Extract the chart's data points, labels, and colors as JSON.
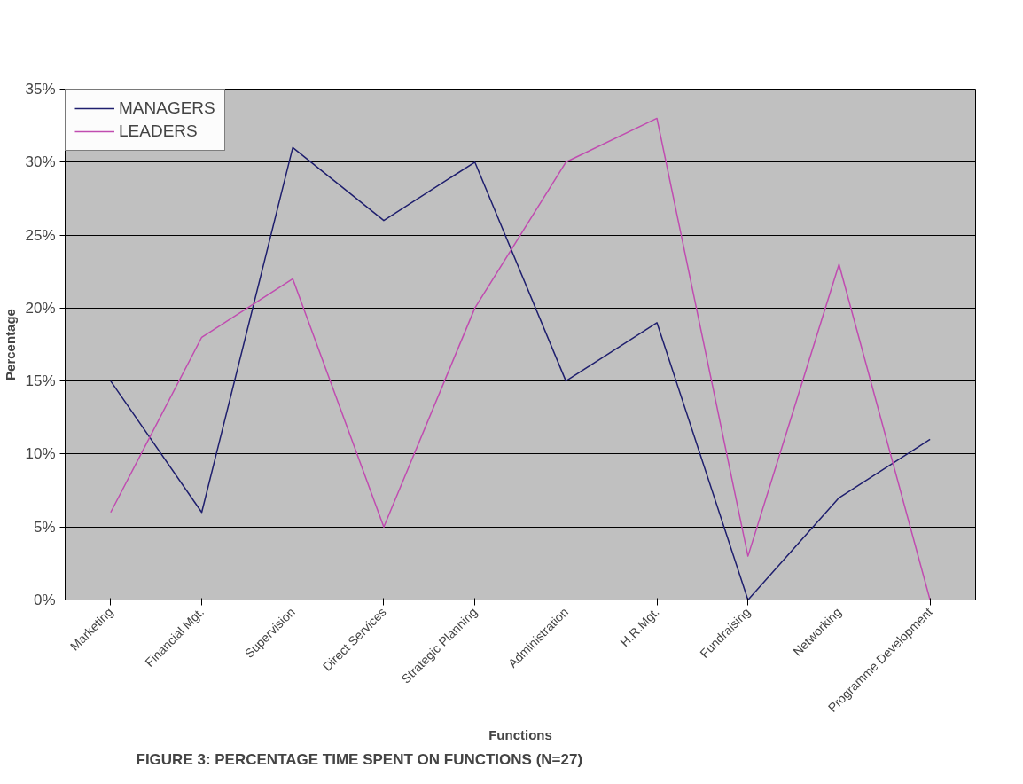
{
  "chart_data": {
    "type": "line",
    "title": "FIGURE 3: PERCENTAGE TIME SPENT ON FUNCTIONS (N=27)",
    "xlabel": "Functions",
    "ylabel": "Percentage",
    "categories": [
      "Marketing",
      "Financial Mgt.",
      "Supervision",
      "Direct Services",
      "Strategic Planning",
      "Administration",
      "H.R.Mgt.",
      "Fundraising",
      "Networking",
      "Programme Development"
    ],
    "series": [
      {
        "name": "MANAGERS",
        "color": "#1f1f6e",
        "values": [
          15,
          6,
          31,
          26,
          30,
          15,
          19,
          0,
          7,
          11
        ]
      },
      {
        "name": "LEADERS",
        "color": "#c04cb0",
        "values": [
          6,
          18,
          22,
          5,
          20,
          30,
          33,
          3,
          23,
          0
        ]
      }
    ],
    "ylim": [
      0,
      35
    ],
    "yticks": [
      {
        "value": 0,
        "label": "0%"
      },
      {
        "value": 5,
        "label": "5%"
      },
      {
        "value": 10,
        "label": "10%"
      },
      {
        "value": 15,
        "label": "15%"
      },
      {
        "value": 20,
        "label": "20%"
      },
      {
        "value": 25,
        "label": "25%"
      },
      {
        "value": 30,
        "label": "30%"
      },
      {
        "value": 35,
        "label": "35%"
      }
    ],
    "grid": "y",
    "legend": "top left",
    "marker": "none",
    "line_style": "solid"
  }
}
